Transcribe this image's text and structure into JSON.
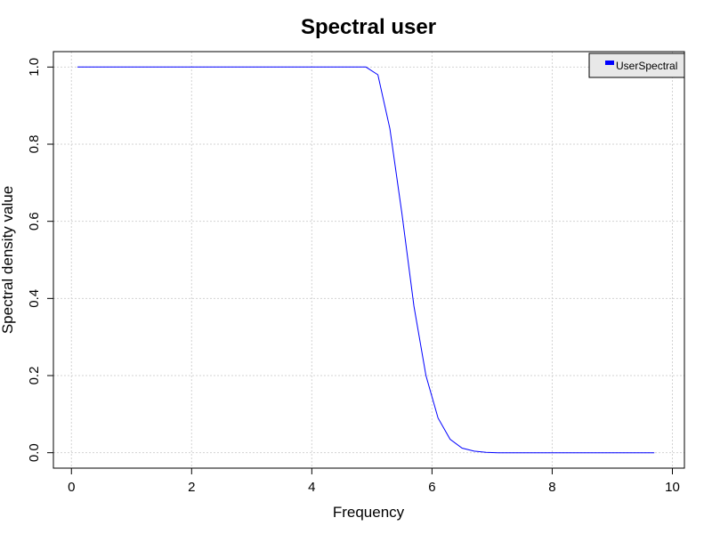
{
  "chart_data": {
    "type": "line",
    "title": "Spectral user",
    "xlabel": "Frequency",
    "ylabel": "Spectral density value",
    "xlim": [
      -0.3,
      10.2
    ],
    "ylim": [
      -0.04,
      1.04
    ],
    "x_ticks": [
      0,
      2,
      4,
      6,
      8,
      10
    ],
    "y_ticks": [
      0.0,
      0.2,
      0.4,
      0.6,
      0.8,
      1.0
    ],
    "x_tick_labels": [
      "0",
      "2",
      "4",
      "6",
      "8",
      "10"
    ],
    "y_tick_labels": [
      "0.0",
      "0.2",
      "0.4",
      "0.6",
      "0.8",
      "1.0"
    ],
    "grid": true,
    "legend_position": "top-right",
    "series": [
      {
        "name": "UserSpectral",
        "color": "#0000ff",
        "x": [
          0.1,
          0.3,
          0.5,
          0.7,
          0.9,
          1.1,
          1.3,
          1.5,
          1.7,
          1.9,
          2.1,
          2.3,
          2.5,
          2.7,
          2.9,
          3.1,
          3.3,
          3.5,
          3.7,
          3.9,
          4.1,
          4.3,
          4.5,
          4.7,
          4.9,
          5.1,
          5.3,
          5.5,
          5.7,
          5.9,
          6.1,
          6.3,
          6.5,
          6.7,
          6.9,
          7.1,
          7.3,
          7.5,
          7.7,
          7.9,
          8.1,
          8.3,
          8.5,
          8.7,
          8.9,
          9.1,
          9.3,
          9.5,
          9.7
        ],
        "y": [
          1,
          1,
          1,
          1,
          1,
          1,
          1,
          1,
          1,
          1,
          1,
          1,
          1,
          1,
          1,
          1,
          1,
          1,
          1,
          1,
          1,
          1,
          1,
          1,
          1,
          0.98,
          0.84,
          0.62,
          0.38,
          0.2,
          0.09,
          0.035,
          0.012,
          0.004,
          0.001,
          0,
          0,
          0,
          0,
          0,
          0,
          0,
          0,
          0,
          0,
          0,
          0,
          0,
          0
        ]
      }
    ]
  }
}
